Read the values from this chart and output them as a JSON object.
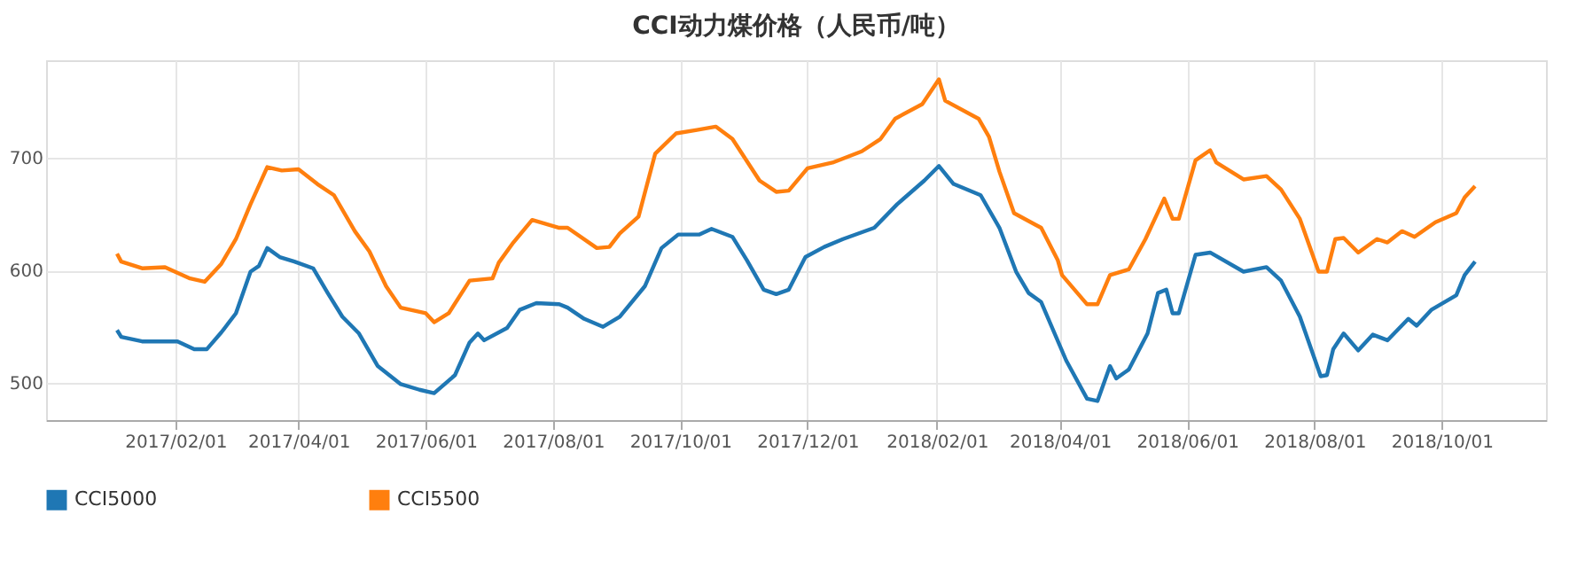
{
  "chart_data": {
    "type": "line",
    "title": "CCI动力煤价格（人民币/吨）",
    "xlim": [
      "2016-12-01",
      "2018-11-20"
    ],
    "xticks": [
      {
        "value": "2017-02-01",
        "label": "2017/02/01"
      },
      {
        "value": "2017-04-01",
        "label": "2017/04/01"
      },
      {
        "value": "2017-06-01",
        "label": "2017/06/01"
      },
      {
        "value": "2017-08-01",
        "label": "2017/08/01"
      },
      {
        "value": "2017-10-01",
        "label": "2017/10/01"
      },
      {
        "value": "2017-12-01",
        "label": "2017/12/01"
      },
      {
        "value": "2018-02-01",
        "label": "2018/02/01"
      },
      {
        "value": "2018-04-01",
        "label": "2018/04/01"
      },
      {
        "value": "2018-06-01",
        "label": "2018/06/01"
      },
      {
        "value": "2018-08-01",
        "label": "2018/08/01"
      },
      {
        "value": "2018-10-01",
        "label": "2018/10/01"
      }
    ],
    "ylim": [
      467,
      787
    ],
    "yticks": [
      500,
      600,
      700
    ],
    "grid": true,
    "legend": "bottom",
    "marker": "none",
    "line_style": "solid",
    "series": [
      {
        "name": "CCI5000",
        "color": "#1f77b4",
        "x": [
          "2017-01-04",
          "2017-01-06",
          "2017-01-16",
          "2017-02-02",
          "2017-02-10",
          "2017-02-16",
          "2017-02-23",
          "2017-03-02",
          "2017-03-09",
          "2017-03-13",
          "2017-03-17",
          "2017-03-23",
          "2017-03-30",
          "2017-04-08",
          "2017-04-15",
          "2017-04-22",
          "2017-04-30",
          "2017-05-09",
          "2017-05-20",
          "2017-05-29",
          "2017-06-05",
          "2017-06-15",
          "2017-06-22",
          "2017-06-26",
          "2017-06-29",
          "2017-07-10",
          "2017-07-16",
          "2017-07-24",
          "2017-08-04",
          "2017-08-08",
          "2017-08-16",
          "2017-08-25",
          "2017-09-02",
          "2017-09-14",
          "2017-09-22",
          "2017-09-30",
          "2017-10-10",
          "2017-10-16",
          "2017-10-26",
          "2017-11-02",
          "2017-11-10",
          "2017-11-16",
          "2017-11-22",
          "2017-11-30",
          "2017-12-09",
          "2017-12-18",
          "2018-01-02",
          "2018-01-13",
          "2018-01-26",
          "2018-02-02",
          "2018-02-09",
          "2018-02-22",
          "2018-03-03",
          "2018-03-11",
          "2018-03-17",
          "2018-03-23",
          "2018-04-04",
          "2018-04-14",
          "2018-04-19",
          "2018-04-25",
          "2018-04-28",
          "2018-05-04",
          "2018-05-13",
          "2018-05-18",
          "2018-05-22",
          "2018-05-25",
          "2018-05-28",
          "2018-06-05",
          "2018-06-12",
          "2018-06-28",
          "2018-07-09",
          "2018-07-16",
          "2018-07-25",
          "2018-08-04",
          "2018-08-07",
          "2018-08-10",
          "2018-08-15",
          "2018-08-22",
          "2018-08-29",
          "2018-09-05",
          "2018-09-15",
          "2018-09-19",
          "2018-09-26",
          "2018-10-08",
          "2018-10-12",
          "2018-10-17"
        ],
        "values": [
          547,
          541,
          537,
          537,
          530,
          530,
          545,
          562,
          599,
          604,
          620,
          612,
          608,
          602,
          580,
          559,
          544,
          515,
          499,
          494,
          491,
          507,
          536,
          544,
          538,
          549,
          565,
          571,
          570,
          567,
          557,
          550,
          559,
          586,
          620,
          632,
          632,
          637,
          630,
          609,
          583,
          579,
          583,
          612,
          621,
          628,
          638,
          659,
          680,
          693,
          677,
          667,
          638,
          599,
          580,
          572,
          520,
          486,
          484,
          515,
          504,
          512,
          544,
          580,
          583,
          562,
          562,
          614,
          616,
          599,
          603,
          591,
          559,
          506,
          507,
          530,
          544,
          529,
          543,
          538,
          557,
          551,
          565,
          578,
          596,
          608
        ]
      },
      {
        "name": "CCI5500",
        "color": "#ff7f0e",
        "x": [
          "2017-01-04",
          "2017-01-06",
          "2017-01-16",
          "2017-01-27",
          "2017-02-08",
          "2017-02-15",
          "2017-02-23",
          "2017-03-02",
          "2017-03-09",
          "2017-03-17",
          "2017-03-24",
          "2017-04-01",
          "2017-04-10",
          "2017-04-18",
          "2017-04-28",
          "2017-05-05",
          "2017-05-13",
          "2017-05-20",
          "2017-06-01",
          "2017-06-05",
          "2017-06-12",
          "2017-06-22",
          "2017-07-03",
          "2017-07-06",
          "2017-07-13",
          "2017-07-22",
          "2017-08-04",
          "2017-08-08",
          "2017-08-22",
          "2017-08-28",
          "2017-09-02",
          "2017-09-11",
          "2017-09-19",
          "2017-09-29",
          "2017-10-09",
          "2017-10-18",
          "2017-10-26",
          "2017-11-08",
          "2017-11-16",
          "2017-11-22",
          "2017-12-01",
          "2017-12-13",
          "2017-12-27",
          "2018-01-05",
          "2018-01-12",
          "2018-01-25",
          "2018-02-02",
          "2018-02-05",
          "2018-02-21",
          "2018-02-26",
          "2018-03-03",
          "2018-03-10",
          "2018-03-20",
          "2018-03-23",
          "2018-03-31",
          "2018-04-02",
          "2018-04-14",
          "2018-04-19",
          "2018-04-25",
          "2018-05-04",
          "2018-05-12",
          "2018-05-21",
          "2018-05-25",
          "2018-05-28",
          "2018-06-05",
          "2018-06-12",
          "2018-06-15",
          "2018-06-28",
          "2018-07-09",
          "2018-07-16",
          "2018-07-25",
          "2018-08-03",
          "2018-08-07",
          "2018-08-11",
          "2018-08-15",
          "2018-08-22",
          "2018-08-31",
          "2018-09-05",
          "2018-09-12",
          "2018-09-18",
          "2018-09-28",
          "2018-10-08",
          "2018-10-12",
          "2018-10-17"
        ],
        "values": [
          615,
          608,
          602,
          603,
          593,
          590,
          606,
          628,
          659,
          692,
          689,
          690,
          677,
          667,
          635,
          617,
          586,
          567,
          562,
          554,
          562,
          591,
          593,
          607,
          625,
          645,
          638,
          638,
          620,
          621,
          633,
          648,
          704,
          722,
          725,
          728,
          717,
          680,
          670,
          671,
          691,
          696,
          706,
          717,
          735,
          748,
          770,
          751,
          735,
          719,
          688,
          651,
          641,
          638,
          609,
          596,
          570,
          570,
          596,
          601,
          628,
          664,
          646,
          646,
          698,
          707,
          696,
          681,
          684,
          672,
          646,
          599,
          599,
          628,
          629,
          616,
          628,
          625,
          635,
          630,
          643,
          651,
          665,
          675
        ]
      }
    ]
  }
}
